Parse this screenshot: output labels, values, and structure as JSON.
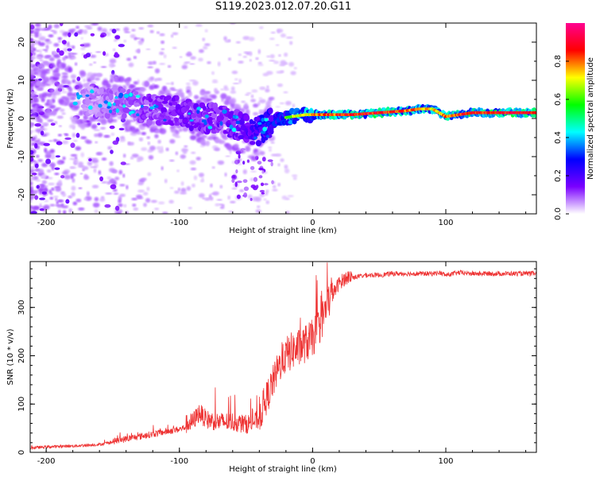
{
  "title": "S119.2023.012.07.20.G11",
  "chart_data": [
    {
      "type": "heatmap",
      "xlabel": "Height of straight line (km)",
      "ylabel": "Frequency (Hz)",
      "xlim": [
        -212,
        168
      ],
      "ylim": [
        -25,
        25
      ],
      "xticks": [
        -200,
        -100,
        0,
        100
      ],
      "yticks": [
        -20,
        -10,
        0,
        10,
        20
      ],
      "colorbar": {
        "label": "Normalized spectral amplitude",
        "range": [
          0,
          1
        ],
        "ticks": [
          "0.0",
          "0.2",
          "0.4",
          "0.6",
          "0.8"
        ],
        "tick_values": [
          0.0,
          0.2,
          0.4,
          0.6,
          0.8
        ],
        "colors": [
          "#ffffff",
          "#7a00ff",
          "#0000ff",
          "#00ffff",
          "#00ff00",
          "#ffff00",
          "#ff0000",
          "#ff0090"
        ]
      },
      "ridge": [
        {
          "x": -210,
          "f": 7,
          "amp": 0.1
        },
        {
          "x": -190,
          "f": 8,
          "amp": 0.12
        },
        {
          "x": -175,
          "f": 5,
          "amp": 0.14
        },
        {
          "x": -160,
          "f": 4,
          "amp": 0.15
        },
        {
          "x": -145,
          "f": 4.5,
          "amp": 0.2
        },
        {
          "x": -130,
          "f": 3,
          "amp": 0.22
        },
        {
          "x": -115,
          "f": 2,
          "amp": 0.25
        },
        {
          "x": -100,
          "f": 2,
          "amp": 0.28
        },
        {
          "x": -85,
          "f": 0,
          "amp": 0.3
        },
        {
          "x": -70,
          "f": 0,
          "amp": 0.3
        },
        {
          "x": -55,
          "f": -2,
          "amp": 0.32
        },
        {
          "x": -45,
          "f": -4,
          "amp": 0.4
        },
        {
          "x": -35,
          "f": -2,
          "amp": 0.5
        },
        {
          "x": -25,
          "f": 0,
          "amp": 0.55
        },
        {
          "x": -15,
          "f": 0.5,
          "amp": 0.7
        },
        {
          "x": -5,
          "f": 1,
          "amp": 0.75
        },
        {
          "x": 10,
          "f": 1,
          "amp": 0.85
        },
        {
          "x": 30,
          "f": 1,
          "amp": 0.9
        },
        {
          "x": 50,
          "f": 1.5,
          "amp": 0.92
        },
        {
          "x": 70,
          "f": 2,
          "amp": 0.85
        },
        {
          "x": 80,
          "f": 2.5,
          "amp": 0.8
        },
        {
          "x": 90,
          "f": 2.5,
          "amp": 0.75
        },
        {
          "x": 100,
          "f": 0.5,
          "amp": 0.85
        },
        {
          "x": 120,
          "f": 1.5,
          "amp": 0.9
        },
        {
          "x": 150,
          "f": 1.5,
          "amp": 0.92
        },
        {
          "x": 168,
          "f": 1.5,
          "amp": 0.92
        }
      ]
    },
    {
      "type": "line",
      "xlabel": "Height of straight line (km)",
      "ylabel": "SNR (10 * v/v)",
      "xlim": [
        -212,
        168
      ],
      "ylim": [
        0,
        395
      ],
      "xticks": [
        -200,
        -100,
        0,
        100
      ],
      "yticks": [
        0,
        100,
        200,
        300
      ],
      "color": "#ee3333",
      "series": [
        {
          "x": [
            -212,
            -200,
            -180,
            -160,
            -150,
            -140,
            -130,
            -120,
            -110,
            -100,
            -90,
            -85,
            -80,
            -70,
            -60,
            -50,
            -40,
            -35,
            -30,
            -25,
            -20,
            -15,
            -10,
            -5,
            0,
            5,
            10,
            15,
            20,
            25,
            30,
            40,
            50,
            60,
            70,
            80,
            90,
            95,
            100,
            110,
            120,
            140,
            160,
            168
          ],
          "y": [
            8,
            10,
            12,
            15,
            20,
            25,
            30,
            35,
            40,
            45,
            55,
            75,
            60,
            55,
            55,
            50,
            60,
            95,
            130,
            165,
            185,
            195,
            200,
            210,
            220,
            245,
            280,
            320,
            345,
            355,
            360,
            365,
            365,
            368,
            368,
            368,
            368,
            370,
            365,
            370,
            368,
            368,
            368,
            368
          ]
        }
      ]
    }
  ]
}
